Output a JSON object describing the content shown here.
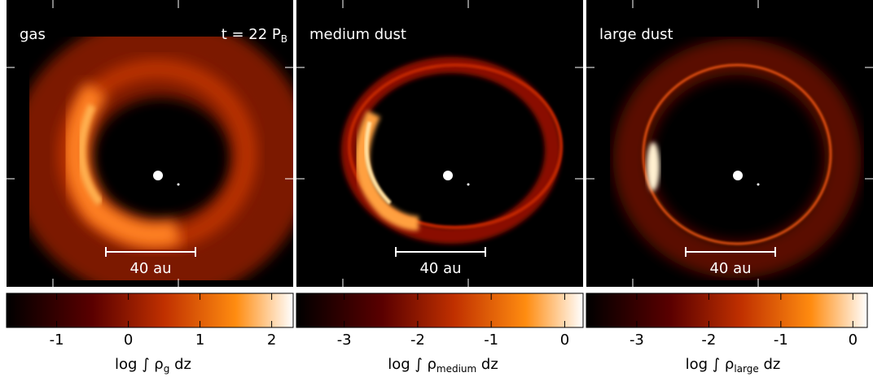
{
  "chart_data": [
    {
      "type": "image",
      "title": "gas",
      "annotation": {
        "text": "t = 22 P",
        "subscript": "B"
      },
      "scalebar": "40 au",
      "colorbar": {
        "label": {
          "text": "log ∫ ρ",
          "subscript": "g",
          "suffix": " dz"
        },
        "xlim": [
          -1.7,
          2.3
        ],
        "xticks": [
          -1,
          0,
          1,
          2
        ]
      }
    },
    {
      "type": "image",
      "title": "medium dust",
      "scalebar": "40 au",
      "colorbar": {
        "label": {
          "text": "log ∫ ρ",
          "subscript": "medium",
          "suffix": " dz"
        },
        "xlim": [
          -3.65,
          0.25
        ],
        "xticks": [
          -3,
          -2,
          -1,
          0
        ]
      }
    },
    {
      "type": "image",
      "title": "large dust",
      "scalebar": "40 au",
      "colorbar": {
        "label": {
          "text": "log ∫ ρ",
          "subscript": "large",
          "suffix": " dz"
        },
        "xlim": [
          -3.7,
          0.2
        ],
        "xticks": [
          -3,
          -2,
          -1,
          0
        ]
      }
    }
  ]
}
